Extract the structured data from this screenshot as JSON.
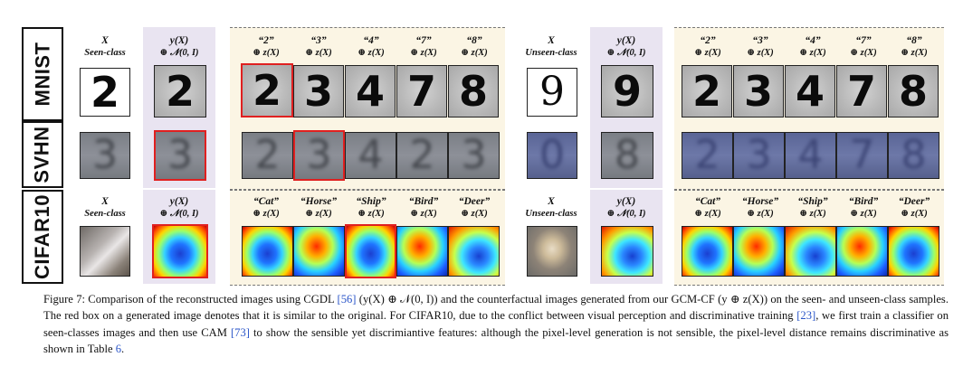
{
  "rows": {
    "mnist": "MNIST",
    "svhn": "SVHN",
    "cifar": "CIFAR10"
  },
  "mnist_headers": {
    "left_x": "X",
    "left_x_sub": "Seen-class",
    "left_y": "y(X)",
    "left_y_sub": "⊕ 𝒩(0, I)",
    "left_digits": [
      "“2”",
      "“3”",
      "“4”",
      "“7”",
      "“8”"
    ],
    "left_digits_sub": "⊕ z(X)",
    "right_x": "X",
    "right_x_sub": "Unseen-class",
    "right_y": "y(X)",
    "right_y_sub": "⊕ 𝒩(0, I)",
    "right_digits": [
      "“2”",
      "“3”",
      "“4”",
      "“7”",
      "“8”"
    ],
    "right_digits_sub": "⊕ z(X)"
  },
  "mnist_images": {
    "left_input": "2",
    "left_recon": "2",
    "left_cf": [
      "2",
      "3",
      "4",
      "7",
      "8"
    ],
    "right_input": "9",
    "right_recon": "9",
    "right_cf": [
      "2",
      "3",
      "4",
      "7",
      "8"
    ]
  },
  "svhn_images": {
    "left_input": "3",
    "left_recon": "3",
    "left_cf": [
      "2",
      "3",
      "4",
      "2",
      "3"
    ],
    "right_input": "0",
    "right_recon": "8",
    "right_cf": [
      "2",
      "3",
      "4",
      "7",
      "8"
    ]
  },
  "cifar_headers": {
    "left_x": "X",
    "left_x_sub": "Seen-class",
    "left_y": "y(X)",
    "left_y_sub": "⊕ 𝒩(0, I)",
    "left_classes": [
      "“Cat”",
      "“Horse”",
      "“Ship”",
      "“Bird”",
      "“Deer”"
    ],
    "left_classes_sub": "⊕ z(X)",
    "right_x": "X",
    "right_x_sub": "Unseen-class",
    "right_y": "y(X)",
    "right_y_sub": "⊕ 𝒩(0, I)",
    "right_classes": [
      "“Cat”",
      "“Horse”",
      "“Ship”",
      "“Bird”",
      "“Deer”"
    ],
    "right_classes_sub": "⊕ z(X)"
  },
  "caption": {
    "p1": "Figure 7: Comparison of the reconstructed images using CGDL ",
    "ref1": "[56]",
    "p2": " (y(X) ⊕ 𝒩(0, I)) and the counterfactual images generated from our GCM-CF (y ⊕ z(X)) on the seen- and unseen-class samples. The red box on a generated image denotes that it is similar to the original. For CIFAR10, due to the conflict between visual perception and discriminative training ",
    "ref2": "[23]",
    "p3": ", we first train a classifier on seen-classes images and then use CAM ",
    "ref3": "[73]",
    "p4": " to show the sensible yet discrimiantive features: although the pixel-level generation is not sensible, the pixel-level distance remains discriminative as shown in Table ",
    "ref4": "6",
    "p5": "."
  },
  "colors": {
    "highlight_box": "#e02020",
    "cream_bg": "#fbf5e4",
    "purple_bg": "#e9e4f1"
  }
}
